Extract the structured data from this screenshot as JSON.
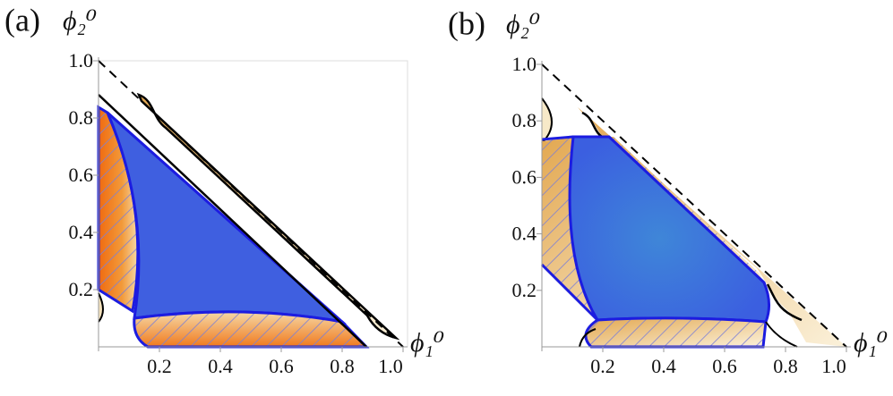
{
  "chart_data": [
    {
      "type": "region-diagram",
      "panel_label": "(a)",
      "xlabel": "ϕ₁⁰",
      "ylabel": "ϕ₂⁰",
      "xlim": [
        0,
        1
      ],
      "ylim": [
        0,
        1
      ],
      "xticks": [
        0.2,
        0.4,
        0.6,
        0.8,
        {
          "value": 1,
          "label": "1.0"
        }
      ],
      "yticks": [
        0.2,
        0.4,
        0.6,
        0.8,
        {
          "value": 1,
          "label": "1.0"
        }
      ]
    },
    {
      "type": "region-diagram",
      "panel_label": "(b)",
      "xlabel": "ϕ₁⁰",
      "ylabel": "ϕ₂⁰",
      "xlim": [
        0,
        1
      ],
      "ylim": [
        0,
        1
      ],
      "xticks": [
        0.2,
        0.4,
        0.6,
        0.8,
        {
          "value": 1,
          "label": "1.0"
        }
      ],
      "yticks": [
        0.2,
        0.4,
        0.6,
        0.8,
        {
          "value": 1,
          "label": "1.0"
        }
      ]
    }
  ]
}
